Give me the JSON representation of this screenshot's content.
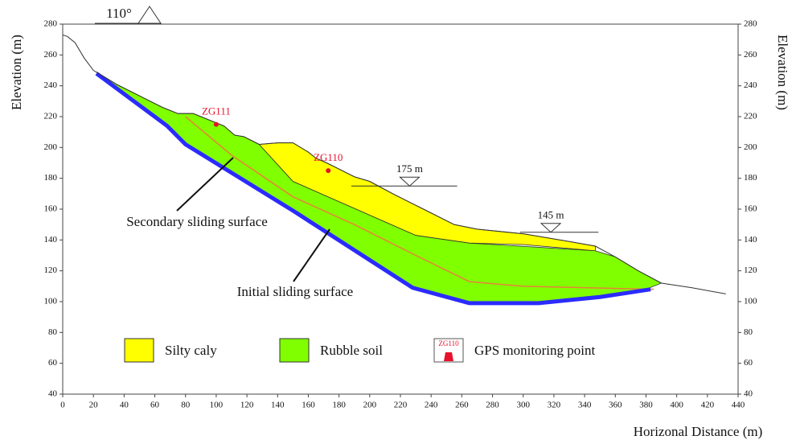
{
  "chart_data": {
    "type": "profile",
    "x_label": "Horizonal Distance (m)",
    "y_label": "Elevation (m)",
    "y2_label": "Elevation (m)",
    "xlim": [
      0,
      440
    ],
    "xticks": [
      0,
      20,
      40,
      60,
      80,
      100,
      120,
      140,
      160,
      180,
      200,
      220,
      240,
      260,
      280,
      300,
      320,
      340,
      360,
      380,
      400,
      420,
      440
    ],
    "ylim": [
      40,
      280
    ],
    "yticks": [
      40,
      60,
      80,
      100,
      120,
      140,
      160,
      180,
      200,
      220,
      240,
      260,
      280
    ],
    "y2lim": [
      40,
      280
    ],
    "y2ticks": [
      40,
      60,
      80,
      100,
      120,
      140,
      160,
      180,
      200,
      220,
      240,
      260,
      280
    ],
    "series": [
      {
        "name": "Rubble soil",
        "color": "#80ff00",
        "fill": true,
        "x": [
          22,
          35,
          45,
          55,
          65,
          75,
          85,
          95,
          105,
          112,
          118,
          128,
          150,
          230,
          265,
          347,
          360,
          375,
          390,
          380,
          350,
          310,
          265,
          228,
          150,
          80,
          68,
          22
        ],
        "values": [
          249,
          241,
          236,
          231,
          226,
          222,
          222,
          218,
          214,
          208,
          207,
          202,
          178,
          143,
          138,
          133,
          129,
          120,
          112,
          108,
          104,
          100,
          100,
          110,
          160,
          202,
          215,
          249
        ]
      },
      {
        "name": "Silty caly",
        "color": "#ffff00",
        "fill": true,
        "x": [
          128,
          140,
          150,
          160,
          165,
          172,
          180,
          190,
          200,
          215,
          235,
          255,
          270,
          300,
          330,
          347,
          347,
          300,
          265,
          230,
          150,
          128
        ],
        "values": [
          202,
          203,
          203,
          197,
          193,
          190,
          186,
          181,
          178,
          170,
          160,
          150,
          147,
          144,
          139,
          136,
          133,
          137,
          138,
          143,
          178,
          202
        ]
      },
      {
        "color": "#e8823a",
        "fill": false,
        "x": [
          80,
          110,
          150,
          190,
          230,
          265,
          300,
          385
        ],
        "values": [
          220,
          195,
          168,
          150,
          130,
          113,
          110,
          108
        ]
      },
      {
        "color": "#2b2bff",
        "fill": false,
        "x": [
          22,
          68,
          80,
          150,
          228,
          265,
          310,
          350,
          383
        ],
        "values": [
          248,
          214,
          202,
          159,
          109,
          99,
          99,
          103,
          108
        ]
      },
      {
        "color": "#333333",
        "fill": false,
        "x": [
          0,
          3,
          8,
          14,
          20,
          25,
          35,
          45,
          55,
          65,
          75,
          85,
          95,
          105,
          112,
          118,
          128,
          140,
          150,
          160,
          165,
          172,
          180,
          190,
          200,
          215,
          235,
          255,
          270,
          300,
          330,
          347,
          360,
          375,
          390,
          410,
          432
        ],
        "values": [
          273,
          272,
          268,
          258,
          250,
          247,
          241,
          236,
          231,
          226,
          222,
          222,
          218,
          214,
          208,
          207,
          202,
          203,
          203,
          197,
          193,
          190,
          186,
          181,
          178,
          170,
          160,
          150,
          147,
          144,
          139,
          136,
          129,
          120,
          112,
          109,
          105
        ]
      }
    ],
    "water_levels": [
      {
        "value": 175,
        "label": "175 m",
        "x": [
          188,
          257
        ],
        "marker": 226
      },
      {
        "value": 145,
        "label": "145 m",
        "x": [
          298,
          349
        ],
        "marker": 318
      }
    ],
    "gps_points": [
      {
        "label": "ZG111",
        "x": 100,
        "y": 215
      },
      {
        "label": "ZG110",
        "x": 173,
        "y": 185
      }
    ],
    "gps_legend": "GPS monitoring point",
    "annotations": [
      "Secondary sliding surface",
      "Initial sliding surface"
    ],
    "dip": "110°"
  }
}
